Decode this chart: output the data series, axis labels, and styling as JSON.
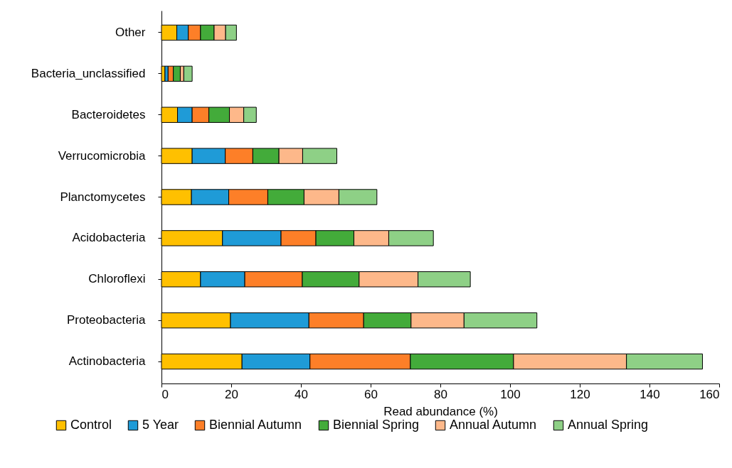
{
  "chart_data": {
    "type": "bar",
    "orientation": "horizontal",
    "stacked": true,
    "xlabel": "Read abundance (%)",
    "xlim": [
      0,
      160
    ],
    "xticks": [
      0,
      20,
      40,
      60,
      80,
      100,
      120,
      140,
      160
    ],
    "legend": "bottom",
    "grid": false,
    "categories": [
      "Other",
      "Bacteria_unclassified",
      "Bacteroidetes",
      "Verrucomicrobia",
      "Planctomycetes",
      "Acidobacteria",
      "Chloroflexi",
      "Proteobacteria",
      "Actinobacteria"
    ],
    "series": [
      {
        "name": "Control",
        "color": "#ffc000",
        "values": [
          4.4,
          1.0,
          4.6,
          8.8,
          8.6,
          17.5,
          11.2,
          19.8,
          23.1
        ]
      },
      {
        "name": "5 Year",
        "color": "#1f9bd7",
        "values": [
          3.3,
          0.9,
          4.2,
          9.5,
          10.7,
          16.8,
          12.7,
          22.5,
          19.5
        ]
      },
      {
        "name": "Biennial Autumn",
        "color": "#fd7f28",
        "values": [
          3.5,
          1.5,
          4.8,
          7.9,
          11.2,
          10.0,
          16.5,
          15.7,
          28.8
        ]
      },
      {
        "name": "Biennial Spring",
        "color": "#43ab3a",
        "values": [
          3.9,
          2.0,
          5.9,
          7.5,
          10.4,
          10.9,
          16.3,
          13.6,
          29.6
        ]
      },
      {
        "name": "Annual Autumn",
        "color": "#fdb88a",
        "values": [
          3.3,
          1.0,
          4.1,
          6.8,
          10.0,
          10.0,
          16.9,
          15.2,
          32.4
        ]
      },
      {
        "name": "Annual Spring",
        "color": "#8ed086",
        "values": [
          3.1,
          2.4,
          3.6,
          9.8,
          10.9,
          12.8,
          15.0,
          20.9,
          21.8
        ]
      }
    ]
  }
}
